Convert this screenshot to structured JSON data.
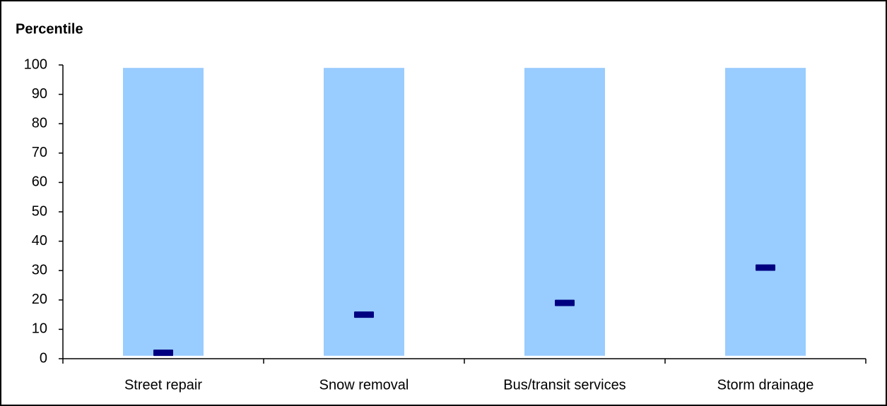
{
  "chart_data": {
    "type": "range",
    "y_label": "Percentile",
    "categories": [
      "Street repair",
      "Snow removal",
      "Bus/transit services",
      "Storm drainage"
    ],
    "bar_low": [
      1,
      1,
      1,
      1
    ],
    "bar_high": [
      99,
      99,
      99,
      99
    ],
    "bar_color": "#99ccff",
    "values": [
      2,
      15,
      19,
      31
    ],
    "color": "#000080",
    "ylim": [
      0,
      100
    ],
    "yticks": [
      0,
      10,
      20,
      30,
      40,
      50,
      60,
      70,
      80,
      90,
      100
    ]
  }
}
